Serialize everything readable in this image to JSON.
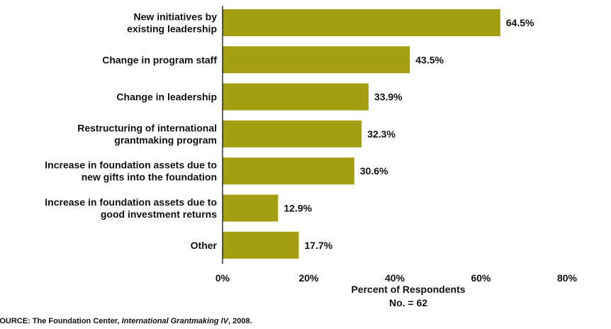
{
  "chart_data": {
    "type": "bar",
    "orientation": "horizontal",
    "categories": [
      "New initiatives by|existing leadership",
      "Change in program staff",
      "Change in leadership",
      "Restructuring of international|grantmaking program",
      "Increase in foundation assets due to|new gifts into the foundation",
      "Increase in foundation assets due to|good investment returns",
      "Other"
    ],
    "values": [
      64.5,
      43.5,
      33.9,
      32.3,
      30.6,
      12.9,
      17.7
    ],
    "value_labels": [
      "64.5%",
      "43.5%",
      "33.9%",
      "32.3%",
      "30.6%",
      "12.9%",
      "17.7%"
    ],
    "xlim": [
      0,
      80
    ],
    "xticks": [
      0,
      20,
      40,
      60,
      80
    ],
    "xtick_labels": [
      "0%",
      "20%",
      "40%",
      "60%",
      "80%"
    ],
    "xlabel": "Percent of Respondents",
    "xlabel_sub": "No. = 62",
    "bar_color": "#a39e12",
    "grid": false
  },
  "source": {
    "prefix": "SOURCE: The Foundation Center, ",
    "title": "International Grantmaking IV",
    "suffix": ", 2008."
  }
}
